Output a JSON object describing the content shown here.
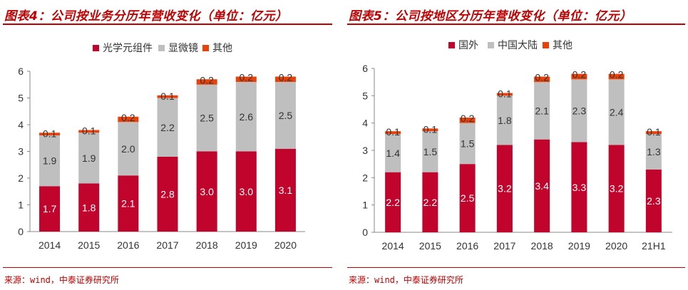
{
  "colors": {
    "accent": "#c00000",
    "series_red": "#c0042c",
    "series_gray": "#bfbfbf",
    "series_orange": "#e8410a"
  },
  "chart_data": [
    {
      "type": "bar",
      "stacked": true,
      "title": "图表4：公司按业务分历年营收变化（单位：亿元）",
      "source": "来源：wind，中泰证券研究所",
      "categories": [
        "2014",
        "2015",
        "2016",
        "2017",
        "2018",
        "2019",
        "2020"
      ],
      "series": [
        {
          "name": "光学元组件",
          "color": "#c0042c",
          "values": [
            1.7,
            1.8,
            2.1,
            2.8,
            3.0,
            3.0,
            3.1
          ],
          "labels": [
            "1.7",
            "1.8",
            "2.1",
            "2.8",
            "3.0",
            "3.0",
            "3.1"
          ]
        },
        {
          "name": "显微镜",
          "color": "#bfbfbf",
          "values": [
            1.9,
            1.9,
            2.0,
            2.2,
            2.5,
            2.6,
            2.5
          ],
          "labels": [
            "1.9",
            "1.9",
            "2.0",
            "2.2",
            "2.5",
            "2.6",
            "2.5"
          ]
        },
        {
          "name": "其他",
          "color": "#e8410a",
          "values": [
            0.1,
            0.1,
            0.2,
            0.1,
            0.2,
            0.2,
            0.2
          ],
          "labels": [
            "0.1",
            "0.1",
            "0.2",
            "0.1",
            "0.2",
            "0.2",
            "0.2"
          ]
        }
      ],
      "ylim": [
        0,
        6
      ],
      "yticks": [
        "0",
        "1",
        "2",
        "3",
        "4",
        "5",
        "6"
      ],
      "legend_position": "top",
      "grid": false
    },
    {
      "type": "bar",
      "stacked": true,
      "title": "图表5：公司按地区分历年营收变化（单位：亿元）",
      "source": "来源：wind，中泰证券研究所",
      "categories": [
        "2014",
        "2015",
        "2016",
        "2017",
        "2018",
        "2019",
        "2020",
        "21H1"
      ],
      "series": [
        {
          "name": "国外",
          "color": "#c0042c",
          "values": [
            2.2,
            2.2,
            2.5,
            3.2,
            3.4,
            3.3,
            3.2,
            2.3
          ],
          "labels": [
            "2.2",
            "2.2",
            "2.5",
            "3.2",
            "3.4",
            "3.3",
            "3.2",
            "2.3"
          ]
        },
        {
          "name": "中国大陆",
          "color": "#bfbfbf",
          "values": [
            1.4,
            1.5,
            1.5,
            1.8,
            2.1,
            2.3,
            2.4,
            1.3
          ],
          "labels": [
            "1.4",
            "1.5",
            "1.5",
            "1.8",
            "2.1",
            "2.3",
            "2.4",
            "1.3"
          ]
        },
        {
          "name": "其他",
          "color": "#e8410a",
          "values": [
            0.1,
            0.1,
            0.2,
            0.1,
            0.2,
            0.2,
            0.2,
            0.1
          ],
          "labels": [
            "0.1",
            "0.1",
            "0.2",
            "0.1",
            "0.2",
            "0.2",
            "0.2",
            "0.1"
          ]
        }
      ],
      "ylim": [
        0,
        6
      ],
      "yticks": [
        "0",
        "1",
        "2",
        "3",
        "4",
        "5",
        "6"
      ],
      "legend_position": "top",
      "grid": false
    }
  ]
}
